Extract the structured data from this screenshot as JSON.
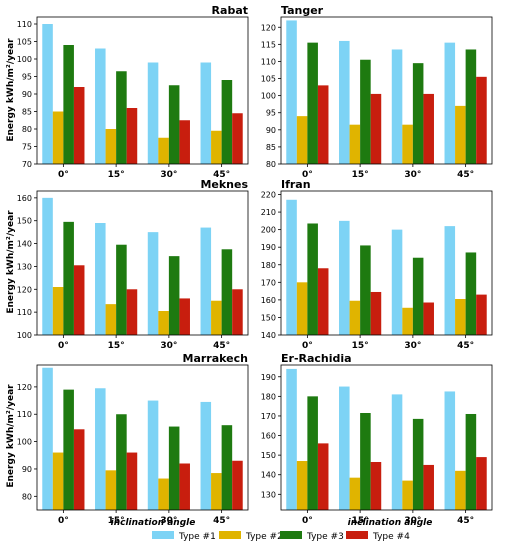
{
  "figure": {
    "xlabel": "inclination angle",
    "ylabel": "Energy kWh/m²/year"
  },
  "legend": {
    "items": [
      {
        "label": "Type #1",
        "color": "#7dd3f5"
      },
      {
        "label": "Type #2",
        "color": "#e0b400"
      },
      {
        "label": "Type #3",
        "color": "#1e7a10"
      },
      {
        "label": "Type #4",
        "color": "#c81e0e"
      }
    ]
  },
  "chart_data": [
    {
      "type": "bar",
      "title": "Rabat",
      "categories": [
        "0°",
        "15°",
        "30°",
        "45°"
      ],
      "ylim": [
        70,
        112
      ],
      "yticks": [
        70,
        75,
        80,
        85,
        90,
        95,
        100,
        105,
        110
      ],
      "series": [
        {
          "name": "Type #1",
          "values": [
            110,
            103,
            99,
            99
          ]
        },
        {
          "name": "Type #2",
          "values": [
            85,
            80,
            77.5,
            79.5
          ]
        },
        {
          "name": "Type #3",
          "values": [
            104,
            96.5,
            92.5,
            94
          ]
        },
        {
          "name": "Type #4",
          "values": [
            92,
            86,
            82.5,
            84.5
          ]
        }
      ]
    },
    {
      "type": "bar",
      "title": "Tanger",
      "categories": [
        "0°",
        "15°",
        "30°",
        "45°"
      ],
      "ylim": [
        80,
        123
      ],
      "yticks": [
        80,
        85,
        90,
        95,
        100,
        105,
        110,
        115,
        120
      ],
      "series": [
        {
          "name": "Type #1",
          "values": [
            122,
            116,
            113.5,
            115.5
          ]
        },
        {
          "name": "Type #2",
          "values": [
            94,
            91.5,
            91.5,
            97
          ]
        },
        {
          "name": "Type #3",
          "values": [
            115.5,
            110.5,
            109.5,
            113.5
          ]
        },
        {
          "name": "Type #4",
          "values": [
            103,
            100.5,
            100.5,
            105.5
          ]
        }
      ]
    },
    {
      "type": "bar",
      "title": "Meknes",
      "categories": [
        "0°",
        "15°",
        "30°",
        "45°"
      ],
      "ylim": [
        100,
        163
      ],
      "yticks": [
        100,
        110,
        120,
        130,
        140,
        150,
        160
      ],
      "series": [
        {
          "name": "Type #1",
          "values": [
            160,
            149,
            145,
            147
          ]
        },
        {
          "name": "Type #2",
          "values": [
            121,
            113.5,
            110.5,
            115
          ]
        },
        {
          "name": "Type #3",
          "values": [
            149.5,
            139.5,
            134.5,
            137.5
          ]
        },
        {
          "name": "Type #4",
          "values": [
            130.5,
            120,
            116,
            120
          ]
        }
      ]
    },
    {
      "type": "bar",
      "title": "Ifran",
      "categories": [
        "0°",
        "15°",
        "30°",
        "45°"
      ],
      "ylim": [
        140,
        222
      ],
      "yticks": [
        140,
        150,
        160,
        170,
        180,
        190,
        200,
        210,
        220
      ],
      "series": [
        {
          "name": "Type #1",
          "values": [
            217,
            205,
            200,
            202
          ]
        },
        {
          "name": "Type #2",
          "values": [
            170,
            159.5,
            155.5,
            160.5
          ]
        },
        {
          "name": "Type #3",
          "values": [
            203.5,
            191,
            184,
            187
          ]
        },
        {
          "name": "Type #4",
          "values": [
            178,
            164.5,
            158.5,
            163
          ]
        }
      ]
    },
    {
      "type": "bar",
      "title": "Marrakech",
      "categories": [
        "0°",
        "15°",
        "30°",
        "45°"
      ],
      "ylim": [
        75,
        128
      ],
      "yticks": [
        80,
        90,
        100,
        110,
        120
      ],
      "series": [
        {
          "name": "Type #1",
          "values": [
            127,
            119.5,
            115,
            114.5
          ]
        },
        {
          "name": "Type #2",
          "values": [
            96,
            89.5,
            86.5,
            88.5
          ]
        },
        {
          "name": "Type #3",
          "values": [
            119,
            110,
            105.5,
            106
          ]
        },
        {
          "name": "Type #4",
          "values": [
            104.5,
            96,
            92,
            93
          ]
        }
      ]
    },
    {
      "type": "bar",
      "title": "Er-Rachidia",
      "categories": [
        "0°",
        "15°",
        "30°",
        "45°"
      ],
      "ylim": [
        122,
        196
      ],
      "yticks": [
        130,
        140,
        150,
        160,
        170,
        180,
        190
      ],
      "series": [
        {
          "name": "Type #1",
          "values": [
            194,
            185,
            181,
            182.5
          ]
        },
        {
          "name": "Type #2",
          "values": [
            147,
            138.5,
            137,
            142
          ]
        },
        {
          "name": "Type #3",
          "values": [
            180,
            171.5,
            168.5,
            171
          ]
        },
        {
          "name": "Type #4",
          "values": [
            156,
            146.5,
            145,
            149
          ]
        }
      ]
    }
  ]
}
